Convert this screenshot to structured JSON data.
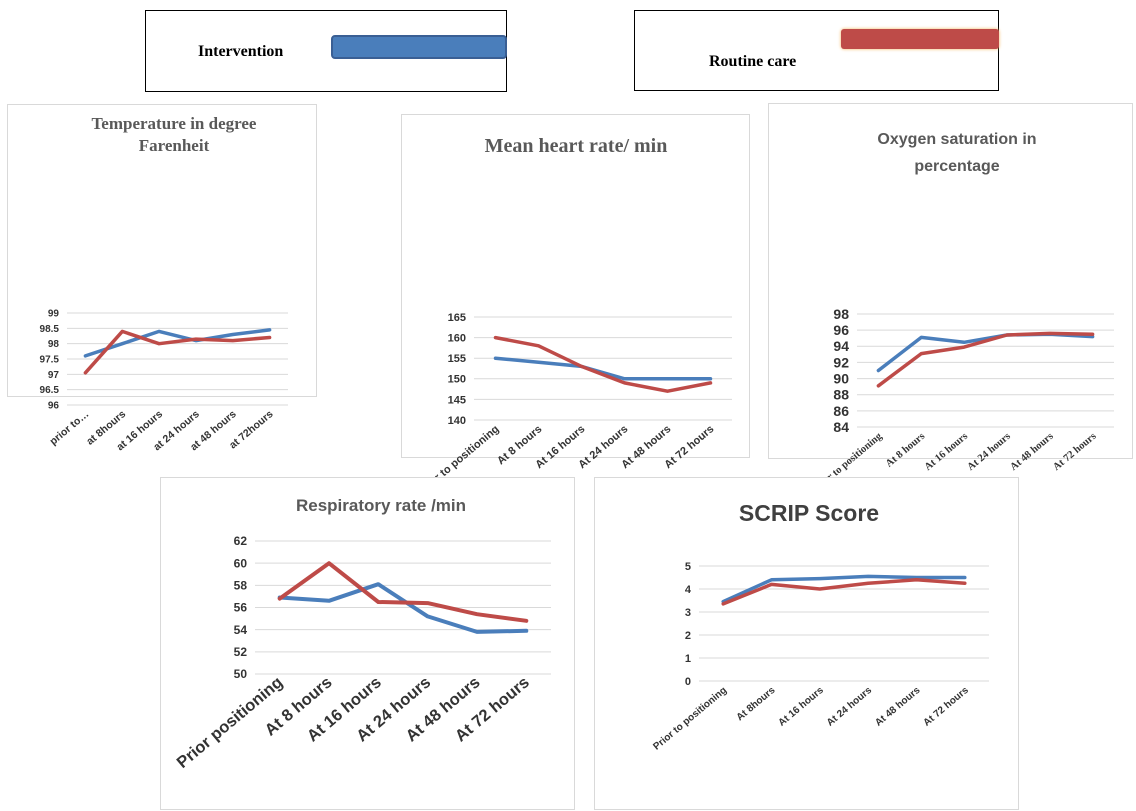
{
  "legend": {
    "intervention": {
      "label": "Intervention",
      "color": "#4a7ebb"
    },
    "routine": {
      "label": "Routine care",
      "color": "#be4b48"
    }
  },
  "chart_data": [
    {
      "type": "line",
      "title": "Temperature in degree Farenheit",
      "title_lines": [
        "Temperature in degree",
        "Farenheit"
      ],
      "categories": [
        "prior to…",
        "at 8hours",
        "at 16 hours",
        "at 24 hours",
        "at 48 hours",
        "at 72hours"
      ],
      "yticks": [
        "96",
        "96.5",
        "97",
        "97.5",
        "98",
        "98.5",
        "99"
      ],
      "ylim": [
        96,
        99
      ],
      "grid": true,
      "series": [
        {
          "key": "intervention",
          "values": [
            97.6,
            98.0,
            98.4,
            98.1,
            98.3,
            98.45
          ]
        },
        {
          "key": "routine",
          "values": [
            97.05,
            98.4,
            98.0,
            98.15,
            98.1,
            98.2
          ]
        }
      ]
    },
    {
      "type": "line",
      "title": "Mean heart rate/ min",
      "title_lines": [
        "Mean heart rate/ min"
      ],
      "categories": [
        "Prior to positioning",
        "At 8 hours",
        "At 16 hours",
        "At 24 hours",
        "At 48 hours",
        "At 72 hours"
      ],
      "yticks": [
        "140",
        "145",
        "150",
        "155",
        "160",
        "165"
      ],
      "ylim": [
        140,
        165
      ],
      "grid": true,
      "series": [
        {
          "key": "intervention",
          "values": [
            155,
            154,
            153,
            150,
            150,
            150
          ]
        },
        {
          "key": "routine",
          "values": [
            160,
            158,
            153,
            149,
            147,
            149
          ]
        }
      ]
    },
    {
      "type": "line",
      "title": "Oxygen saturation in percentage",
      "title_lines": [
        "Oxygen saturation in",
        "percentage"
      ],
      "categories": [
        "Prior to positioning",
        "At 8 hours",
        "At 16 hours",
        "At 24 hours",
        "At 48 hours",
        "At 72 hours"
      ],
      "yticks": [
        "84",
        "86",
        "88",
        "90",
        "92",
        "94",
        "96",
        "98"
      ],
      "ylim": [
        84,
        98
      ],
      "grid": true,
      "series": [
        {
          "key": "intervention",
          "values": [
            91,
            95.1,
            94.5,
            95.4,
            95.5,
            95.2
          ]
        },
        {
          "key": "routine",
          "values": [
            89.1,
            93.1,
            93.9,
            95.4,
            95.6,
            95.5
          ]
        }
      ]
    },
    {
      "type": "line",
      "title": "Respiratory rate /min",
      "title_lines": [
        "Respiratory rate /min"
      ],
      "categories": [
        "Prior positioning",
        "At 8 hours",
        "At 16 hours",
        "At 24 hours",
        "At 48 hours",
        "At 72 hours"
      ],
      "yticks": [
        "50",
        "52",
        "54",
        "56",
        "58",
        "60",
        "62"
      ],
      "ylim": [
        50,
        62
      ],
      "grid": true,
      "series": [
        {
          "key": "intervention",
          "values": [
            56.9,
            56.6,
            58.1,
            55.2,
            53.8,
            53.9
          ]
        },
        {
          "key": "routine",
          "values": [
            56.8,
            60.0,
            56.5,
            56.4,
            55.4,
            54.8
          ]
        }
      ]
    },
    {
      "type": "line",
      "title": "SCRIP Score",
      "title_lines": [
        "SCRIP Score"
      ],
      "categories": [
        "Prior to positioning",
        "At 8hours",
        "At 16 hours",
        "At 24 hours",
        "At 48 hours",
        "At 72 hours"
      ],
      "yticks": [
        "0",
        "1",
        "2",
        "3",
        "4",
        "5"
      ],
      "ylim": [
        0,
        5
      ],
      "grid": true,
      "series": [
        {
          "key": "intervention",
          "values": [
            3.45,
            4.4,
            4.45,
            4.55,
            4.5,
            4.5
          ]
        },
        {
          "key": "routine",
          "values": [
            3.35,
            4.2,
            4.0,
            4.25,
            4.4,
            4.25
          ]
        }
      ]
    }
  ]
}
